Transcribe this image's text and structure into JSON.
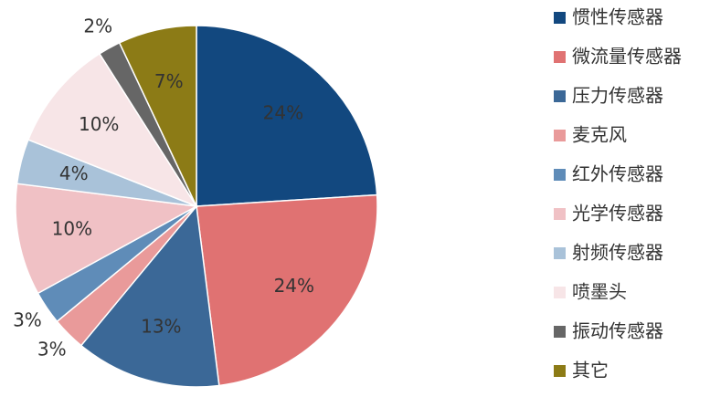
{
  "chart_data": {
    "type": "pie",
    "categories": [
      "惯性传感器",
      "微流量传感器",
      "压力传感器",
      "麦克风",
      "红外传感器",
      "光学传感器",
      "射频传感器",
      "喷墨头",
      "振动传感器",
      "其它"
    ],
    "values": [
      24,
      24,
      13,
      3,
      3,
      10,
      4,
      10,
      2,
      7
    ],
    "value_labels": [
      "24%",
      "24%",
      "13%",
      "3%",
      "3%",
      "10%",
      "4%",
      "10%",
      "2%",
      "7%"
    ],
    "colors": [
      "#12487f",
      "#e07272",
      "#3b6897",
      "#e99a9a",
      "#5f8cb8",
      "#f0c1c5",
      "#a9c2d9",
      "#f7e5e7",
      "#666666",
      "#8c7b16"
    ]
  }
}
